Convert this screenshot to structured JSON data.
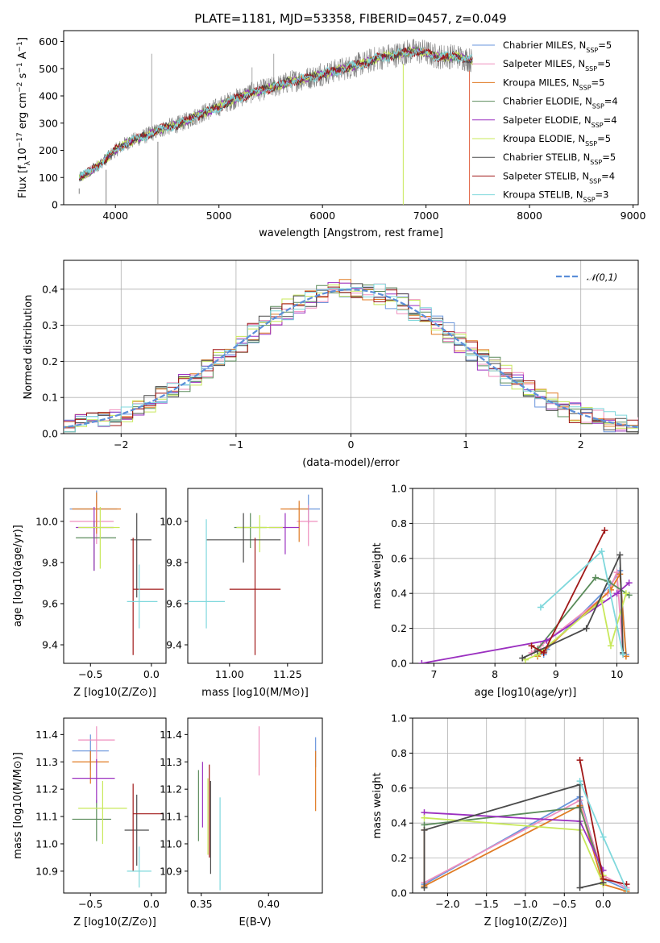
{
  "figure_title": "PLATE=1181, MJD=53358, FIBERID=0457, z=0.049",
  "models": [
    {
      "name": "Chabrier MILES",
      "nssp": 5,
      "color": "#6a96dc"
    },
    {
      "name": "Salpeter MILES",
      "nssp": 5,
      "color": "#ef8fbe"
    },
    {
      "name": "Kroupa MILES",
      "nssp": 5,
      "color": "#e07b24"
    },
    {
      "name": "Chabrier ELODIE",
      "nssp": 4,
      "color": "#5b8c5b"
    },
    {
      "name": "Salpeter ELODIE",
      "nssp": 4,
      "color": "#9b30c0"
    },
    {
      "name": "Kroupa ELODIE",
      "nssp": 5,
      "color": "#c8e85a"
    },
    {
      "name": "Chabrier STELIB",
      "nssp": 5,
      "color": "#4a4a4a"
    },
    {
      "name": "Salpeter STELIB",
      "nssp": 4,
      "color": "#a01818"
    },
    {
      "name": "Kroupa STELIB",
      "nssp": 3,
      "color": "#7fd8dc"
    }
  ],
  "chart_data": [
    {
      "id": "spectrum",
      "type": "line",
      "xlabel": "wavelength [Angstrom, rest frame]",
      "ylabel": "Flux [f_λ 10^-17 erg cm^-2 s^-1 A^-1]",
      "xlim": [
        3500,
        9050
      ],
      "ylim": [
        0,
        640
      ],
      "xticks": [
        4000,
        5000,
        6000,
        7000,
        8000,
        9000
      ],
      "yticks": [
        0,
        100,
        200,
        300,
        400,
        500,
        600
      ],
      "data_color": "#808080",
      "continuum": {
        "x": [
          3650,
          3700,
          3750,
          3800,
          3850,
          3900,
          4000,
          4100,
          4200,
          4300,
          4400,
          4500,
          4600,
          4700,
          4800,
          4900,
          5000,
          5100,
          5200,
          5300,
          5400,
          5500,
          5600,
          5700,
          5800,
          5900,
          6000,
          6100,
          6200,
          6300,
          6400,
          6500,
          6600,
          6700,
          6800,
          6900,
          7000,
          7100,
          7200,
          7300,
          7400,
          7450
        ],
        "y": [
          100,
          110,
          120,
          135,
          150,
          165,
          200,
          225,
          240,
          255,
          270,
          285,
          295,
          310,
          330,
          345,
          360,
          380,
          395,
          410,
          420,
          430,
          440,
          455,
          460,
          470,
          480,
          490,
          500,
          510,
          520,
          535,
          545,
          550,
          560,
          565,
          560,
          545,
          545,
          545,
          535,
          530
        ]
      },
      "dropouts": [
        {
          "x": 3650,
          "ymin": 40
        },
        {
          "x": 3910,
          "ymin": 0
        },
        {
          "x": 4410,
          "ymin": 0
        },
        {
          "x": 6780,
          "ymin": 0
        },
        {
          "x": 7420,
          "ymin": 0
        }
      ],
      "spikes": [
        {
          "x": 4350,
          "y": 555
        },
        {
          "x": 5530,
          "y": 555
        },
        {
          "x": 5320,
          "y": 505
        },
        {
          "x": 5980,
          "y": 520
        },
        {
          "x": 6350,
          "y": 560
        }
      ],
      "legend_position": "right"
    },
    {
      "id": "residuals",
      "type": "histogram",
      "xlabel": "(data-model)/error",
      "ylabel": "Normed distribution",
      "xlim": [
        -2.5,
        2.5
      ],
      "ylim": [
        0,
        0.48
      ],
      "xticks": [
        -2,
        -1,
        0,
        1,
        2
      ],
      "yticks": [
        0.0,
        0.1,
        0.2,
        0.3,
        0.4
      ],
      "bin_width": 0.1,
      "reference_label": "𝒩(0,1)",
      "reference_color": "#5b8ed8"
    },
    {
      "id": "age_vs_Z",
      "type": "errorbar",
      "xlabel": "Z [log10(Z/Z⊙)]",
      "ylabel": "age [log10(age/yr)]",
      "xlim": [
        -0.72,
        0.12
      ],
      "ylim": [
        9.31,
        10.16
      ],
      "xticks": [
        -0.5,
        0.0
      ],
      "yticks": [
        9.4,
        9.6,
        9.8,
        10.0
      ],
      "points": [
        {
          "m": 0,
          "x": -0.45,
          "xerr": [
            0.22,
            0.17
          ],
          "y": 10.06,
          "yerr": [
            0.09,
            0.09
          ]
        },
        {
          "m": 1,
          "x": -0.45,
          "xerr": [
            0.22,
            0.14
          ],
          "y": 10.0,
          "yerr": [
            0.11,
            0.1
          ]
        },
        {
          "m": 2,
          "x": -0.45,
          "xerr": [
            0.2,
            0.2
          ],
          "y": 10.06,
          "yerr": [
            0.12,
            0.08
          ]
        },
        {
          "m": 3,
          "x": -0.47,
          "xerr": [
            0.15,
            0.18
          ],
          "y": 9.92,
          "yerr": [
            0.16,
            0.08
          ]
        },
        {
          "m": 4,
          "x": -0.47,
          "xerr": [
            0.15,
            0.16
          ],
          "y": 9.97,
          "yerr": [
            0.21,
            0.1
          ]
        },
        {
          "m": 5,
          "x": -0.42,
          "xerr": [
            0.18,
            0.16
          ],
          "y": 9.97,
          "yerr": [
            0.2,
            0.1
          ]
        },
        {
          "m": 6,
          "x": -0.12,
          "xerr": [
            0.05,
            0.12
          ],
          "y": 9.91,
          "yerr": [
            0.28,
            0.13
          ]
        },
        {
          "m": 7,
          "x": -0.15,
          "xerr": [
            0.0,
            0.25
          ],
          "y": 9.67,
          "yerr": [
            0.32,
            0.25
          ]
        },
        {
          "m": 8,
          "x": -0.1,
          "xerr": [
            0.1,
            0.15
          ],
          "y": 9.61,
          "yerr": [
            0.13,
            0.18
          ]
        }
      ]
    },
    {
      "id": "age_vs_mass",
      "type": "errorbar",
      "xlabel": "mass [log10(M/M⊙)]",
      "ylabel": "",
      "xlim": [
        10.82,
        11.4
      ],
      "ylim": [
        9.31,
        10.16
      ],
      "xticks": [
        11.0,
        11.25
      ],
      "yticks": [
        9.4,
        9.6,
        9.8,
        10.0
      ],
      "points": [
        {
          "m": 0,
          "x": 11.34,
          "xerr": [
            0.08,
            0.05
          ],
          "y": 10.06,
          "yerr": [
            0.07,
            0.07
          ]
        },
        {
          "m": 1,
          "x": 11.34,
          "xerr": [
            0.05,
            0.04
          ],
          "y": 10.0,
          "yerr": [
            0.12,
            0.08
          ]
        },
        {
          "m": 2,
          "x": 11.3,
          "xerr": [
            0.08,
            0.04
          ],
          "y": 10.06,
          "yerr": [
            0.16,
            0.04
          ]
        },
        {
          "m": 3,
          "x": 11.09,
          "xerr": [
            0.07,
            0.07
          ],
          "y": 9.97,
          "yerr": [
            0.1,
            0.07
          ]
        },
        {
          "m": 4,
          "x": 11.24,
          "xerr": [
            0.07,
            0.06
          ],
          "y": 9.97,
          "yerr": [
            0.13,
            0.07
          ]
        },
        {
          "m": 5,
          "x": 11.13,
          "xerr": [
            0.1,
            0.1
          ],
          "y": 9.97,
          "yerr": [
            0.12,
            0.06
          ]
        },
        {
          "m": 6,
          "x": 11.06,
          "xerr": [
            0.16,
            0.16
          ],
          "y": 9.91,
          "yerr": [
            0.11,
            0.13
          ]
        },
        {
          "m": 7,
          "x": 11.11,
          "xerr": [
            0.11,
            0.11
          ],
          "y": 9.67,
          "yerr": [
            0.32,
            0.25
          ]
        },
        {
          "m": 8,
          "x": 10.9,
          "xerr": [
            0.08,
            0.08
          ],
          "y": 9.61,
          "yerr": [
            0.13,
            0.4
          ]
        }
      ]
    },
    {
      "id": "weight_vs_age",
      "type": "line",
      "xlabel": "age [log10(age/yr)]",
      "ylabel": "mass weight",
      "xlim": [
        6.65,
        10.35
      ],
      "ylim": [
        0,
        1.0
      ],
      "xticks": [
        7,
        8,
        9,
        10
      ],
      "yticks": [
        0.0,
        0.2,
        0.4,
        0.6,
        0.8,
        1.0
      ],
      "series": [
        {
          "m": 0,
          "x": [
            8.8,
            8.85,
            9.9,
            10.05,
            10.15
          ],
          "y": [
            0.05,
            0.08,
            0.45,
            0.53,
            0.05
          ]
        },
        {
          "m": 1,
          "x": [
            8.6,
            8.75,
            9.85,
            10.0,
            10.1
          ],
          "y": [
            0.06,
            0.1,
            0.4,
            0.52,
            0.05
          ]
        },
        {
          "m": 2,
          "x": [
            8.7,
            8.8,
            9.9,
            10.05,
            10.15
          ],
          "y": [
            0.04,
            0.07,
            0.42,
            0.51,
            0.04
          ]
        },
        {
          "m": 3,
          "x": [
            8.7,
            9.65,
            9.85,
            10.2
          ],
          "y": [
            0.08,
            0.49,
            0.47,
            0.39
          ]
        },
        {
          "m": 4,
          "x": [
            6.8,
            8.85,
            10.0,
            10.2
          ],
          "y": [
            0.0,
            0.13,
            0.4,
            0.46
          ]
        },
        {
          "m": 5,
          "x": [
            8.5,
            8.7,
            9.75,
            9.9,
            10.15
          ],
          "y": [
            0.02,
            0.05,
            0.36,
            0.1,
            0.4
          ]
        },
        {
          "m": 6,
          "x": [
            8.45,
            8.7,
            9.5,
            10.05,
            10.1
          ],
          "y": [
            0.03,
            0.07,
            0.2,
            0.62,
            0.06
          ]
        },
        {
          "m": 7,
          "x": [
            8.6,
            8.8,
            9.8
          ],
          "y": [
            0.1,
            0.06,
            0.76
          ]
        },
        {
          "m": 8,
          "x": [
            8.75,
            9.75,
            10.1
          ],
          "y": [
            0.32,
            0.64,
            0.05
          ]
        }
      ]
    },
    {
      "id": "mass_vs_Z",
      "type": "errorbar",
      "xlabel": "Z [log10(Z/Z⊙)]",
      "ylabel": "mass [log10(M/M⊙)]",
      "xlim": [
        -0.72,
        0.12
      ],
      "ylim": [
        10.82,
        11.46
      ],
      "xticks": [
        -0.5,
        0.0
      ],
      "yticks": [
        10.9,
        11.0,
        11.1,
        11.2,
        11.3,
        11.4
      ],
      "points": [
        {
          "m": 0,
          "x": -0.5,
          "xerr": [
            0.15,
            0.15
          ],
          "y": 11.34,
          "yerr": [
            0.07,
            0.06
          ]
        },
        {
          "m": 1,
          "x": -0.45,
          "xerr": [
            0.15,
            0.15
          ],
          "y": 11.38,
          "yerr": [
            0.08,
            0.05
          ]
        },
        {
          "m": 2,
          "x": -0.5,
          "xerr": [
            0.15,
            0.15
          ],
          "y": 11.3,
          "yerr": [
            0.08,
            0.04
          ]
        },
        {
          "m": 3,
          "x": -0.45,
          "xerr": [
            0.2,
            0.12
          ],
          "y": 11.09,
          "yerr": [
            0.08,
            0.07
          ]
        },
        {
          "m": 4,
          "x": -0.45,
          "xerr": [
            0.2,
            0.15
          ],
          "y": 11.24,
          "yerr": [
            0.09,
            0.07
          ]
        },
        {
          "m": 5,
          "x": -0.4,
          "xerr": [
            0.2,
            0.2
          ],
          "y": 11.13,
          "yerr": [
            0.13,
            0.1
          ]
        },
        {
          "m": 6,
          "x": -0.12,
          "xerr": [
            0.1,
            0.1
          ],
          "y": 11.05,
          "yerr": [
            0.13,
            0.13
          ]
        },
        {
          "m": 7,
          "x": -0.15,
          "xerr": [
            0.0,
            0.25
          ],
          "y": 11.11,
          "yerr": [
            0.21,
            0.11
          ]
        },
        {
          "m": 8,
          "x": -0.1,
          "xerr": [
            0.1,
            0.1
          ],
          "y": 10.9,
          "yerr": [
            0.06,
            0.09
          ]
        }
      ]
    },
    {
      "id": "mass_vs_EBV",
      "type": "errorbar",
      "xlabel": "E(B-V)",
      "ylabel": "",
      "xlim": [
        0.34,
        0.44
      ],
      "ylim": [
        10.82,
        11.46
      ],
      "xticks": [
        0.35,
        0.4
      ],
      "yticks": [
        10.9,
        11.0,
        11.1,
        11.2,
        11.3,
        11.4
      ],
      "points": [
        {
          "m": 0,
          "x": 0.435,
          "xerr": [
            0,
            0
          ],
          "y": 11.33,
          "yerr": [
            0.05,
            0.06
          ]
        },
        {
          "m": 1,
          "x": 0.393,
          "xerr": [
            0,
            0
          ],
          "y": 11.34,
          "yerr": [
            0.09,
            0.09
          ]
        },
        {
          "m": 2,
          "x": 0.435,
          "xerr": [
            0,
            0
          ],
          "y": 11.23,
          "yerr": [
            0.11,
            0.11
          ]
        },
        {
          "m": 3,
          "x": 0.348,
          "xerr": [
            0,
            0
          ],
          "y": 11.14,
          "yerr": [
            0.13,
            0.13
          ]
        },
        {
          "m": 4,
          "x": 0.351,
          "xerr": [
            0,
            0
          ],
          "y": 11.18,
          "yerr": [
            0.12,
            0.12
          ]
        },
        {
          "m": 5,
          "x": 0.355,
          "xerr": [
            0,
            0
          ],
          "y": 11.1,
          "yerr": [
            0.14,
            0.14
          ]
        },
        {
          "m": 6,
          "x": 0.357,
          "xerr": [
            0,
            0
          ],
          "y": 11.06,
          "yerr": [
            0.17,
            0.17
          ]
        },
        {
          "m": 7,
          "x": 0.356,
          "xerr": [
            0,
            0
          ],
          "y": 11.12,
          "yerr": [
            0.17,
            0.17
          ]
        },
        {
          "m": 8,
          "x": 0.364,
          "xerr": [
            0,
            0
          ],
          "y": 11.0,
          "yerr": [
            0.17,
            0.17
          ]
        }
      ]
    },
    {
      "id": "weight_vs_Z",
      "type": "line",
      "xlabel": "Z [log10(Z/Z⊙)]",
      "ylabel": "mass weight",
      "xlim": [
        -2.45,
        0.45
      ],
      "ylim": [
        0,
        1.0
      ],
      "xticks": [
        -2.0,
        -1.5,
        -1.0,
        -0.5,
        0.0
      ],
      "yticks": [
        0.0,
        0.2,
        0.4,
        0.6,
        0.8,
        1.0
      ],
      "series": [
        {
          "m": 0,
          "x": [
            -2.3,
            -0.3,
            0.0,
            0.3
          ],
          "y": [
            0.05,
            0.55,
            0.08,
            0.02
          ]
        },
        {
          "m": 1,
          "x": [
            -2.3,
            -0.3,
            0.0,
            0.3
          ],
          "y": [
            0.06,
            0.53,
            0.1,
            0.03
          ]
        },
        {
          "m": 2,
          "x": [
            -2.3,
            -2.3,
            -0.3,
            0.0,
            0.3
          ],
          "y": [
            0.36,
            0.04,
            0.5,
            0.05,
            0.01
          ]
        },
        {
          "m": 3,
          "x": [
            -2.3,
            -0.3,
            0.0
          ],
          "y": [
            0.39,
            0.49,
            0.1
          ]
        },
        {
          "m": 4,
          "x": [
            -2.3,
            -0.3,
            0.0
          ],
          "y": [
            0.46,
            0.41,
            0.13
          ]
        },
        {
          "m": 5,
          "x": [
            -2.3,
            -0.3,
            0.0,
            0.0
          ],
          "y": [
            0.43,
            0.36,
            0.05,
            0.1
          ]
        },
        {
          "m": 6,
          "x": [
            -2.3,
            -2.3,
            -0.3,
            -0.3,
            0.0
          ],
          "y": [
            0.03,
            0.36,
            0.62,
            0.03,
            0.06
          ]
        },
        {
          "m": 7,
          "x": [
            -0.3,
            0.0,
            0.3
          ],
          "y": [
            0.76,
            0.08,
            0.05
          ]
        },
        {
          "m": 8,
          "x": [
            -0.3,
            0.0,
            0.3
          ],
          "y": [
            0.64,
            0.32,
            0.02
          ]
        }
      ]
    }
  ]
}
